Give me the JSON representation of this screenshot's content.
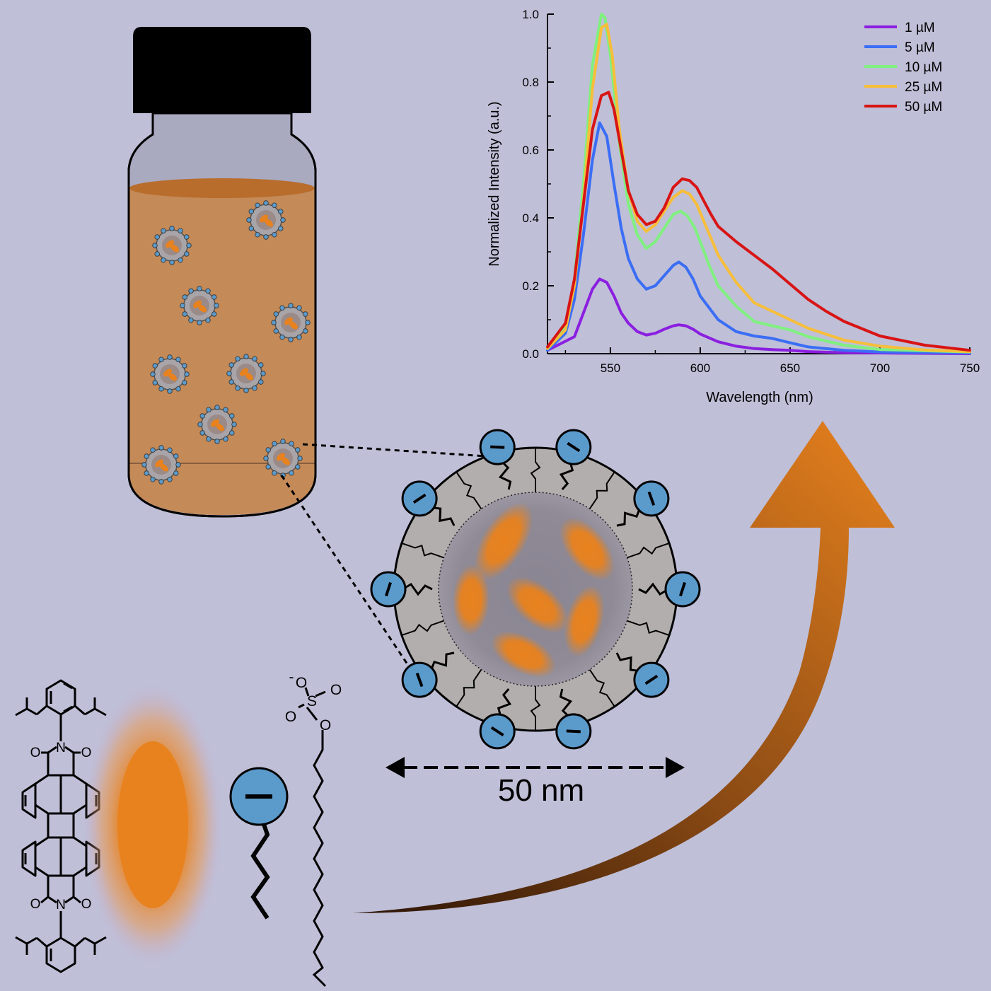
{
  "colors": {
    "background": "#bfbfd8",
    "solution": "#c48a58",
    "dye_orange": "#e8821e",
    "shell_grey": "#b3aeae",
    "core_grey": "#8a8592",
    "head_blue": "#5b9bcc",
    "cap_black": "#000000"
  },
  "chart_data": {
    "type": "line",
    "xlabel": "Wavelength (nm)",
    "ylabel": "Normalized Intensity (a.u.)",
    "xlim": [
      515,
      750
    ],
    "ylim": [
      0,
      1.0
    ],
    "x_ticks": [
      550,
      600,
      650,
      700,
      750
    ],
    "y_ticks": [
      0.0,
      0.2,
      0.4,
      0.6,
      0.8,
      1.0
    ],
    "legend_position": "top-right",
    "grid": false,
    "series": [
      {
        "name": "1 µM",
        "color": "#8b1fe0",
        "x": [
          515,
          530,
          535,
          540,
          544,
          548,
          552,
          556,
          560,
          565,
          570,
          575,
          580,
          585,
          588,
          592,
          596,
          600,
          610,
          620,
          630,
          640,
          650,
          660,
          680,
          700,
          750
        ],
        "y": [
          0.01,
          0.05,
          0.12,
          0.19,
          0.22,
          0.21,
          0.17,
          0.12,
          0.09,
          0.065,
          0.055,
          0.06,
          0.072,
          0.082,
          0.085,
          0.082,
          0.072,
          0.058,
          0.035,
          0.022,
          0.015,
          0.012,
          0.01,
          0.006,
          0.003,
          0.002,
          0.0
        ]
      },
      {
        "name": "5 µM",
        "color": "#3b6ef5",
        "x": [
          515,
          525,
          530,
          535,
          540,
          544,
          548,
          552,
          556,
          560,
          565,
          570,
          575,
          580,
          585,
          588,
          592,
          596,
          600,
          610,
          620,
          630,
          640,
          650,
          660,
          680,
          700,
          750
        ],
        "y": [
          0.01,
          0.06,
          0.16,
          0.35,
          0.57,
          0.68,
          0.64,
          0.5,
          0.37,
          0.28,
          0.22,
          0.19,
          0.2,
          0.23,
          0.26,
          0.27,
          0.255,
          0.22,
          0.17,
          0.1,
          0.065,
          0.052,
          0.045,
          0.032,
          0.02,
          0.01,
          0.005,
          0.002
        ]
      },
      {
        "name": "10 µM",
        "color": "#7ff07f",
        "x": [
          515,
          525,
          530,
          535,
          540,
          545,
          547,
          550,
          555,
          560,
          565,
          570,
          575,
          580,
          585,
          589,
          593,
          597,
          600,
          605,
          610,
          620,
          630,
          640,
          650,
          660,
          680,
          700,
          750
        ],
        "y": [
          0.015,
          0.08,
          0.22,
          0.5,
          0.85,
          1.0,
          0.99,
          0.88,
          0.62,
          0.44,
          0.35,
          0.31,
          0.33,
          0.37,
          0.41,
          0.42,
          0.405,
          0.37,
          0.33,
          0.26,
          0.2,
          0.14,
          0.095,
          0.082,
          0.07,
          0.05,
          0.025,
          0.012,
          0.005
        ]
      },
      {
        "name": "25 µM",
        "color": "#f7be3a",
        "x": [
          515,
          525,
          530,
          535,
          540,
          545,
          548,
          551,
          555,
          560,
          565,
          570,
          575,
          580,
          585,
          590,
          594,
          598,
          602,
          606,
          610,
          620,
          630,
          640,
          650,
          660,
          680,
          700,
          725,
          750
        ],
        "y": [
          0.015,
          0.07,
          0.2,
          0.45,
          0.78,
          0.96,
          0.97,
          0.88,
          0.66,
          0.48,
          0.39,
          0.36,
          0.38,
          0.42,
          0.46,
          0.48,
          0.47,
          0.44,
          0.39,
          0.34,
          0.29,
          0.21,
          0.15,
          0.125,
          0.1,
          0.075,
          0.04,
          0.022,
          0.011,
          0.006
        ]
      },
      {
        "name": "50 µM",
        "color": "#d81414",
        "x": [
          515,
          525,
          530,
          535,
          540,
          545,
          549,
          552,
          556,
          560,
          565,
          570,
          575,
          580,
          585,
          590,
          594,
          598,
          602,
          606,
          610,
          620,
          630,
          640,
          650,
          660,
          670,
          680,
          700,
          725,
          750
        ],
        "y": [
          0.02,
          0.09,
          0.22,
          0.44,
          0.66,
          0.76,
          0.77,
          0.72,
          0.6,
          0.48,
          0.41,
          0.38,
          0.39,
          0.43,
          0.49,
          0.515,
          0.51,
          0.49,
          0.45,
          0.41,
          0.375,
          0.33,
          0.29,
          0.25,
          0.205,
          0.16,
          0.125,
          0.095,
          0.052,
          0.025,
          0.01
        ]
      }
    ]
  },
  "labels": {
    "scale_bar": "50 nm",
    "sds_oxygens": [
      "O",
      "O",
      "O",
      "O"
    ],
    "sds_sulfur": "S",
    "sds_charge": "-",
    "pdi_nitrogens": [
      "N",
      "N"
    ],
    "pdi_oxygens": [
      "O",
      "O",
      "O",
      "O"
    ]
  }
}
